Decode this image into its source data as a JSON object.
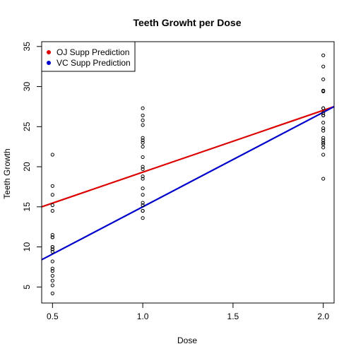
{
  "chart_data": {
    "type": "scatter",
    "title": "Teeth Growht per Dose",
    "xlabel": "Dose",
    "ylabel": "Teeth Growth",
    "xlim": [
      0.44,
      2.06
    ],
    "ylim": [
      3.0,
      35.6
    ],
    "x_ticks": [
      0.5,
      1.0,
      1.5,
      2.0
    ],
    "x_tick_labels": [
      "0.5",
      "1.0",
      "1.5",
      "2.0"
    ],
    "y_ticks": [
      5,
      10,
      15,
      20,
      25,
      30,
      35
    ],
    "y_tick_labels": [
      "5",
      "10",
      "15",
      "20",
      "25",
      "30",
      "35"
    ],
    "grid": false,
    "legend": {
      "position": "top-left",
      "entries": [
        {
          "label": "OJ Supp Prediction",
          "color": "#dd0000"
        },
        {
          "label": "VC Supp Prediction",
          "color": "#0000cc"
        }
      ]
    },
    "points": {
      "color": "#000000",
      "x": [
        0.5,
        0.5,
        0.5,
        0.5,
        0.5,
        0.5,
        0.5,
        0.5,
        0.5,
        0.5,
        0.5,
        0.5,
        0.5,
        0.5,
        0.5,
        0.5,
        0.5,
        0.5,
        0.5,
        0.5,
        1.0,
        1.0,
        1.0,
        1.0,
        1.0,
        1.0,
        1.0,
        1.0,
        1.0,
        1.0,
        1.0,
        1.0,
        1.0,
        1.0,
        1.0,
        1.0,
        1.0,
        1.0,
        1.0,
        1.0,
        2.0,
        2.0,
        2.0,
        2.0,
        2.0,
        2.0,
        2.0,
        2.0,
        2.0,
        2.0,
        2.0,
        2.0,
        2.0,
        2.0,
        2.0,
        2.0,
        2.0,
        2.0,
        2.0,
        2.0
      ],
      "y": [
        4.2,
        5.2,
        5.8,
        6.4,
        7.0,
        7.3,
        8.2,
        9.4,
        9.7,
        10.0,
        11.2,
        11.5,
        14.5,
        15.2,
        16.5,
        17.6,
        21.5,
        9.7,
        10.0,
        11.2,
        13.6,
        14.5,
        15.2,
        16.5,
        17.3,
        18.5,
        18.8,
        19.7,
        20.0,
        21.2,
        22.5,
        23.0,
        23.3,
        23.6,
        25.2,
        25.8,
        26.4,
        27.3,
        14.5,
        15.5,
        18.5,
        21.5,
        22.4,
        23.0,
        23.3,
        23.6,
        24.5,
        24.8,
        25.5,
        26.4,
        26.7,
        27.3,
        29.4,
        29.5,
        30.9,
        32.5,
        33.9,
        26.4,
        27.3,
        22.8
      ]
    },
    "series": [
      {
        "name": "OJ Supp Prediction",
        "type": "line",
        "color": "#dd0000",
        "x": [
          0.44,
          2.06
        ],
        "y": [
          15.0,
          27.5
        ]
      },
      {
        "name": "VC Supp Prediction",
        "type": "line",
        "color": "#0000cc",
        "x": [
          0.44,
          2.06
        ],
        "y": [
          8.4,
          27.5
        ]
      }
    ]
  }
}
